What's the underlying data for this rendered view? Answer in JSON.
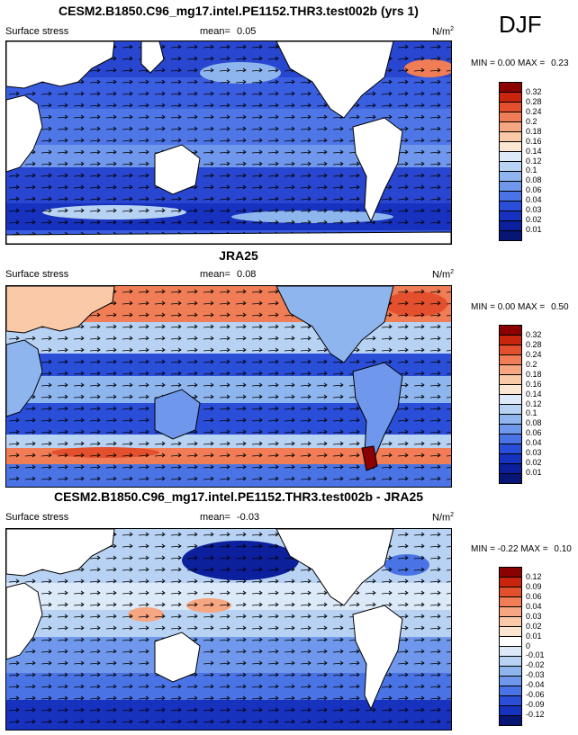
{
  "season": "DJF",
  "panels": [
    {
      "title": "CESM2.B1850.C96_mg17.intel.PE1152.THR3.test002b (yrs 1)",
      "variable": "Surface stress",
      "mean_label": "mean=",
      "mean": "0.05",
      "units": "N/m",
      "units_sup": "2",
      "min_label": "MIN =",
      "min": "0.00",
      "max_label": "MAX =",
      "max": "0.23",
      "colorbar": {
        "colors": [
          "#8b0000",
          "#c8240e",
          "#e4502d",
          "#f07d55",
          "#f6a680",
          "#f9c9a8",
          "#fbe6d2",
          "#dce9f8",
          "#b7d2f3",
          "#8eb5ee",
          "#6f98ec",
          "#4a74e6",
          "#2a4ed8",
          "#1732bf",
          "#0c1f9c",
          "#071575"
        ],
        "labels": [
          "0.32",
          "0.28",
          "0.24",
          "0.2",
          "0.18",
          "0.16",
          "0.14",
          "0.12",
          "0.1",
          "0.08",
          "0.06",
          "0.04",
          "0.03",
          "0.02",
          "0.01"
        ]
      }
    },
    {
      "title": "JRA25",
      "variable": "Surface stress",
      "mean_label": "mean=",
      "mean": "0.08",
      "units": "N/m",
      "units_sup": "2",
      "min_label": "MIN =",
      "min": "0.00",
      "max_label": "MAX =",
      "max": "0.50",
      "colorbar": {
        "colors": [
          "#8b0000",
          "#c8240e",
          "#e4502d",
          "#f07d55",
          "#f6a680",
          "#f9c9a8",
          "#fbe6d2",
          "#dce9f8",
          "#b7d2f3",
          "#8eb5ee",
          "#6f98ec",
          "#4a74e6",
          "#2a4ed8",
          "#1732bf",
          "#0c1f9c",
          "#071575"
        ],
        "labels": [
          "0.32",
          "0.28",
          "0.24",
          "0.2",
          "0.18",
          "0.16",
          "0.14",
          "0.12",
          "0.1",
          "0.08",
          "0.06",
          "0.04",
          "0.03",
          "0.02",
          "0.01"
        ]
      }
    },
    {
      "title": "CESM2.B1850.C96_mg17.intel.PE1152.THR3.test002b - JRA25",
      "variable": "Surface stress",
      "mean_label": "mean=",
      "mean": "-0.03",
      "units": "N/m",
      "units_sup": "2",
      "min_label": "MIN =",
      "min": "-0.22",
      "max_label": "MAX =",
      "max": "0.10",
      "colorbar": {
        "colors": [
          "#8b0000",
          "#c8240e",
          "#e4502d",
          "#f07d55",
          "#f6a680",
          "#f9c9a8",
          "#fbe6d2",
          "#ffffff",
          "#dce9f8",
          "#b7d2f3",
          "#8eb5ee",
          "#6f98ec",
          "#4a74e6",
          "#2a4ed8",
          "#1732bf",
          "#071575"
        ],
        "labels": [
          "0.12",
          "0.09",
          "0.06",
          "0.04",
          "0.03",
          "0.02",
          "0.01",
          "0",
          "-0.01",
          "-0.02",
          "-0.03",
          "-0.04",
          "-0.06",
          "-0.09",
          "-0.12"
        ]
      }
    }
  ]
}
